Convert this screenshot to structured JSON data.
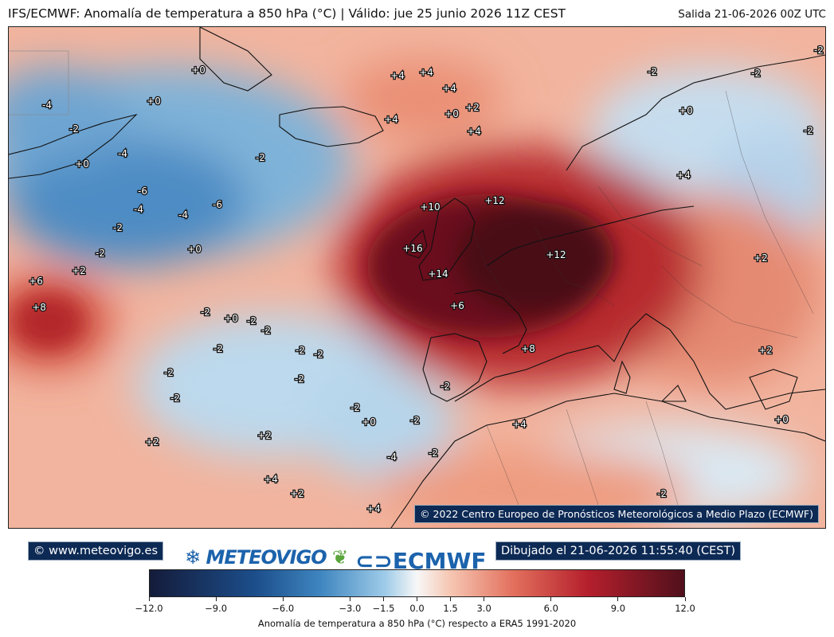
{
  "header": {
    "title": "IFS/ECMWF: Anomalía de temperatura a 850 hPa (°C) | Válido: jue 25 junio 2026 11Z CEST",
    "run": "Salida 21-06-2026 00Z UTC"
  },
  "map": {
    "copyright": "© 2022 Centro Europeo de Pronósticos Meteorológicos a Medio Plazo (ECMWF)",
    "contour_labels": [
      "+0",
      "+2",
      "+4",
      "+6",
      "+8",
      "+10",
      "+12",
      "+14",
      "+16",
      "-2",
      "-4",
      "-6"
    ],
    "labels": [
      {
        "t": "+0"
      },
      {
        "t": "+0"
      },
      {
        "t": "-4"
      },
      {
        "t": "-2"
      },
      {
        "t": "-4"
      },
      {
        "t": "+0"
      },
      {
        "t": "-6"
      },
      {
        "t": "-4"
      },
      {
        "t": "-4"
      },
      {
        "t": "-6"
      },
      {
        "t": "-2"
      },
      {
        "t": "-2"
      },
      {
        "t": "-2"
      },
      {
        "t": "+0"
      },
      {
        "t": "+2"
      },
      {
        "t": "+6"
      },
      {
        "t": "+8"
      },
      {
        "t": "+4"
      },
      {
        "t": "+4"
      },
      {
        "t": "+4"
      },
      {
        "t": "+2"
      },
      {
        "t": "+0"
      },
      {
        "t": "+4"
      },
      {
        "t": "+4"
      },
      {
        "t": "+10"
      },
      {
        "t": "+12"
      },
      {
        "t": "+16"
      },
      {
        "t": "+14"
      },
      {
        "t": "+12"
      },
      {
        "t": "+6"
      },
      {
        "t": "+8"
      },
      {
        "t": "-2"
      },
      {
        "t": "+0"
      },
      {
        "t": "-2"
      },
      {
        "t": "-2"
      },
      {
        "t": "-2"
      },
      {
        "t": "-2"
      },
      {
        "t": "-2"
      },
      {
        "t": "-2"
      },
      {
        "t": "-2"
      },
      {
        "t": "-2"
      },
      {
        "t": "-2"
      },
      {
        "t": "+0"
      },
      {
        "t": "-2"
      },
      {
        "t": "-2"
      },
      {
        "t": "+2"
      },
      {
        "t": "+2"
      },
      {
        "t": "-4"
      },
      {
        "t": "-2"
      },
      {
        "t": "+4"
      },
      {
        "t": "+2"
      },
      {
        "t": "+4"
      },
      {
        "t": "+4"
      },
      {
        "t": "-2"
      },
      {
        "t": "-2"
      },
      {
        "t": "-2"
      },
      {
        "t": "+0"
      },
      {
        "t": "-2"
      },
      {
        "t": "+4"
      },
      {
        "t": "+2"
      },
      {
        "t": "+2"
      },
      {
        "t": "+0"
      },
      {
        "t": "-2"
      }
    ]
  },
  "footer": {
    "site": "© www.meteovigo.es",
    "logo_meteovigo": "METEOVIGO",
    "logo_ecmwf": "ECMWF",
    "drawn": "Dibujado el 21-06-2026 11:55:40 (CEST)"
  },
  "colorbar": {
    "ticks": [
      "−12.0",
      "−9.0",
      "−6.0",
      "−3.0",
      "−1.5",
      "0.0",
      "1.5",
      "3.0",
      "6.0",
      "9.0",
      "12.0"
    ],
    "tick_values": [
      -12,
      -9,
      -6,
      -3,
      -1.5,
      0,
      1.5,
      3,
      6,
      9,
      12
    ],
    "caption": "Anomalía de temperatura a 850 hPa (°C) respecto a ERA5 1991-2020",
    "colors": {
      "min": "#141b3a",
      "neutral": "#f7f7f7",
      "max": "#50101c"
    }
  }
}
